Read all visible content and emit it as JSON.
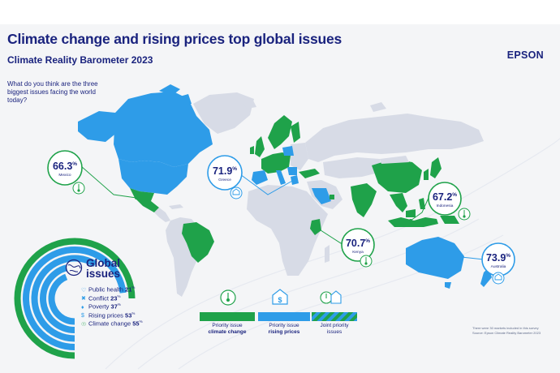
{
  "header": {
    "title": "Climate change and rising prices top global issues",
    "subtitle": "Climate Reality Barometer 2023",
    "brand": "EPSON",
    "question": "What do you think are the three biggest issues facing the world today?"
  },
  "colors": {
    "climate_change": "#1fa24a",
    "rising_prices": "#2e9ce8",
    "other_land": "#d7dbe6",
    "navy": "#1a237e",
    "background": "#f4f5f7"
  },
  "callouts": [
    {
      "country": "Mexico",
      "pct": "66.3",
      "unit": "%",
      "issue": "climate change"
    },
    {
      "country": "Greece",
      "pct": "71.9",
      "unit": "%",
      "issue": "rising prices"
    },
    {
      "country": "Kenya",
      "pct": "70.7",
      "unit": "%",
      "issue": "climate change"
    },
    {
      "country": "Indonesia",
      "pct": "67.2",
      "unit": "%",
      "issue": "climate change"
    },
    {
      "country": "Australia",
      "pct": "73.9",
      "unit": "%",
      "issue": "rising prices"
    }
  ],
  "global_issues": {
    "title": "Global issues",
    "items": [
      {
        "label": "Public health",
        "value": "21",
        "unit": "%",
        "icon": "heart-health-icon"
      },
      {
        "label": "Conflict",
        "value": "23",
        "unit": "%",
        "icon": "conflict-icon"
      },
      {
        "label": "Poverty",
        "value": "37",
        "unit": "%",
        "icon": "poverty-icon"
      },
      {
        "label": "Rising prices",
        "value": "53",
        "unit": "%",
        "icon": "dollar-icon"
      },
      {
        "label": "Climate change",
        "value": "55",
        "unit": "%",
        "icon": "thermometer-icon"
      }
    ]
  },
  "legend": [
    {
      "line1": "Priority issue",
      "line2": "climate change",
      "bold_line2": true,
      "icon": "thermometer-icon"
    },
    {
      "line1": "Priority issue",
      "line2": "rising prices",
      "bold_line2": true,
      "icon": "house-dollar-icon"
    },
    {
      "line1": "Joint priority",
      "line2": "issues",
      "bold_line2": false,
      "icon": "joint-issues-icon"
    }
  ],
  "footnote": {
    "line1": "There were 30 markets included in this survey",
    "line2": "Source: Epson Climate Reality Barometer 2023"
  },
  "chart_data": {
    "type": "bar",
    "title": "Global issues",
    "categories": [
      "Public health",
      "Conflict",
      "Poverty",
      "Rising prices",
      "Climate change"
    ],
    "values": [
      21,
      23,
      37,
      53,
      55
    ],
    "unit": "%",
    "style": "radial",
    "map_callouts": [
      {
        "country": "Mexico",
        "value": 66.3
      },
      {
        "country": "Greece",
        "value": 71.9
      },
      {
        "country": "Kenya",
        "value": 70.7
      },
      {
        "country": "Indonesia",
        "value": 67.2
      },
      {
        "country": "Australia",
        "value": 73.9
      }
    ]
  }
}
